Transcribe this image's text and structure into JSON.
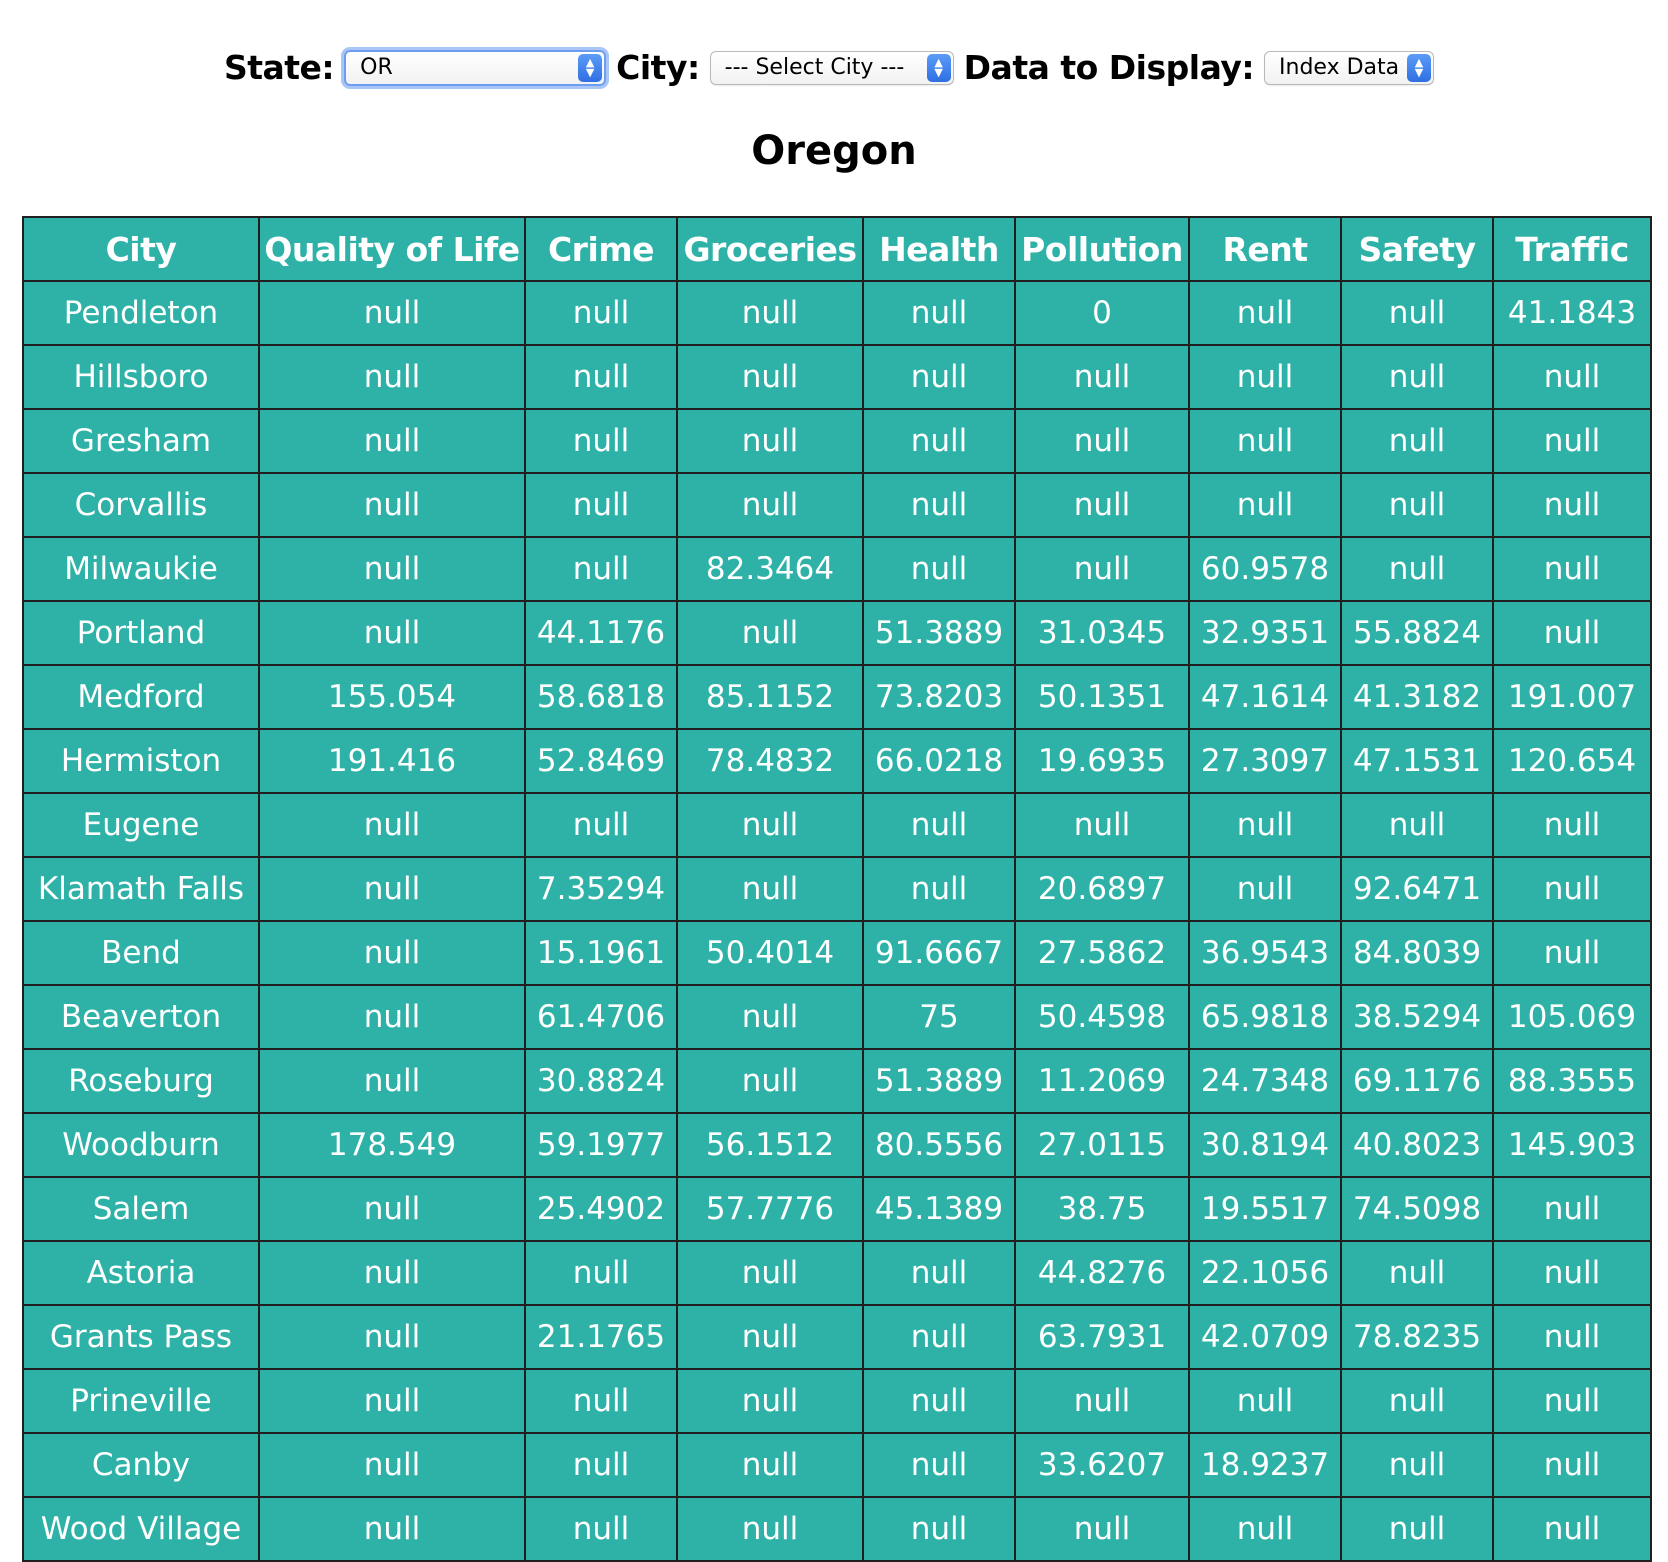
{
  "controls": {
    "state_label": "State:",
    "state_value": "OR",
    "city_label": "City:",
    "city_value": "--- Select City ---",
    "display_label": "Data to Display:",
    "display_value": "Index Data"
  },
  "page_title": "Oregon",
  "table": {
    "headers": [
      "City",
      "Quality of Life",
      "Crime",
      "Groceries",
      "Health",
      "Pollution",
      "Rent",
      "Safety",
      "Traffic"
    ],
    "rows": [
      [
        "Pendleton",
        "null",
        "null",
        "null",
        "null",
        "0",
        "null",
        "null",
        "41.1843"
      ],
      [
        "Hillsboro",
        "null",
        "null",
        "null",
        "null",
        "null",
        "null",
        "null",
        "null"
      ],
      [
        "Gresham",
        "null",
        "null",
        "null",
        "null",
        "null",
        "null",
        "null",
        "null"
      ],
      [
        "Corvallis",
        "null",
        "null",
        "null",
        "null",
        "null",
        "null",
        "null",
        "null"
      ],
      [
        "Milwaukie",
        "null",
        "null",
        "82.3464",
        "null",
        "null",
        "60.9578",
        "null",
        "null"
      ],
      [
        "Portland",
        "null",
        "44.1176",
        "null",
        "51.3889",
        "31.0345",
        "32.9351",
        "55.8824",
        "null"
      ],
      [
        "Medford",
        "155.054",
        "58.6818",
        "85.1152",
        "73.8203",
        "50.1351",
        "47.1614",
        "41.3182",
        "191.007"
      ],
      [
        "Hermiston",
        "191.416",
        "52.8469",
        "78.4832",
        "66.0218",
        "19.6935",
        "27.3097",
        "47.1531",
        "120.654"
      ],
      [
        "Eugene",
        "null",
        "null",
        "null",
        "null",
        "null",
        "null",
        "null",
        "null"
      ],
      [
        "Klamath Falls",
        "null",
        "7.35294",
        "null",
        "null",
        "20.6897",
        "null",
        "92.6471",
        "null"
      ],
      [
        "Bend",
        "null",
        "15.1961",
        "50.4014",
        "91.6667",
        "27.5862",
        "36.9543",
        "84.8039",
        "null"
      ],
      [
        "Beaverton",
        "null",
        "61.4706",
        "null",
        "75",
        "50.4598",
        "65.9818",
        "38.5294",
        "105.069"
      ],
      [
        "Roseburg",
        "null",
        "30.8824",
        "null",
        "51.3889",
        "11.2069",
        "24.7348",
        "69.1176",
        "88.3555"
      ],
      [
        "Woodburn",
        "178.549",
        "59.1977",
        "56.1512",
        "80.5556",
        "27.0115",
        "30.8194",
        "40.8023",
        "145.903"
      ],
      [
        "Salem",
        "null",
        "25.4902",
        "57.7776",
        "45.1389",
        "38.75",
        "19.5517",
        "74.5098",
        "null"
      ],
      [
        "Astoria",
        "null",
        "null",
        "null",
        "null",
        "44.8276",
        "22.1056",
        "null",
        "null"
      ],
      [
        "Grants Pass",
        "null",
        "21.1765",
        "null",
        "null",
        "63.7931",
        "42.0709",
        "78.8235",
        "null"
      ],
      [
        "Prineville",
        "null",
        "null",
        "null",
        "null",
        "null",
        "null",
        "null",
        "null"
      ],
      [
        "Canby",
        "null",
        "null",
        "null",
        "null",
        "33.6207",
        "18.9237",
        "null",
        "null"
      ],
      [
        "Wood Village",
        "null",
        "null",
        "null",
        "null",
        "null",
        "null",
        "null",
        "null"
      ]
    ]
  }
}
